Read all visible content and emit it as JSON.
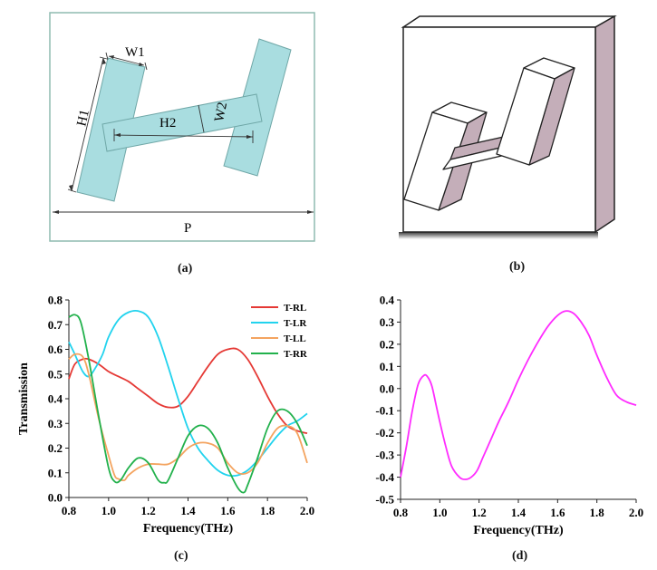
{
  "panels": {
    "a": {
      "caption": "(a)",
      "labels": {
        "w1": "W1",
        "h1": "H1",
        "h2": "H2",
        "w2": "W2",
        "p": "P"
      },
      "colors": {
        "fill": "#a9dde0",
        "stroke": "#6fa7a7",
        "frame": "#8fbbb1"
      }
    },
    "b": {
      "caption": "(b)",
      "colors": {
        "face": "#ffffff",
        "side": "#c4aeb9",
        "edge": "#222222"
      }
    },
    "c": {
      "caption": "(c)"
    },
    "d": {
      "caption": "(d)"
    }
  },
  "chart_data": [
    {
      "type": "line",
      "xlabel": "Frequency(THz)",
      "ylabel": "Transmission",
      "xlim": [
        0.8,
        2.0
      ],
      "ylim": [
        0.0,
        0.8
      ],
      "xticks": [
        "0.8",
        "1.0",
        "1.2",
        "1.4",
        "1.6",
        "1.8",
        "2.0"
      ],
      "yticks": [
        "0.0",
        "0.1",
        "0.2",
        "0.3",
        "0.4",
        "0.5",
        "0.6",
        "0.7",
        "0.8"
      ],
      "legend_position": "top-right",
      "series": [
        {
          "name": "T-RL",
          "color": "#e53935",
          "x": [
            0.8,
            0.83,
            0.87,
            0.9,
            0.95,
            1.0,
            1.05,
            1.1,
            1.15,
            1.2,
            1.25,
            1.3,
            1.35,
            1.4,
            1.45,
            1.5,
            1.55,
            1.6,
            1.65,
            1.7,
            1.75,
            1.8,
            1.85,
            1.9,
            1.95,
            2.0
          ],
          "y": [
            0.48,
            0.54,
            0.56,
            0.56,
            0.54,
            0.51,
            0.49,
            0.47,
            0.44,
            0.41,
            0.38,
            0.365,
            0.37,
            0.41,
            0.47,
            0.53,
            0.58,
            0.6,
            0.6,
            0.56,
            0.49,
            0.41,
            0.34,
            0.29,
            0.27,
            0.26
          ]
        },
        {
          "name": "T-LR",
          "color": "#22d3ee",
          "x": [
            0.8,
            0.83,
            0.87,
            0.9,
            0.93,
            0.97,
            1.0,
            1.05,
            1.1,
            1.15,
            1.2,
            1.25,
            1.3,
            1.35,
            1.4,
            1.45,
            1.5,
            1.55,
            1.6,
            1.65,
            1.7,
            1.75,
            1.8,
            1.85,
            1.9,
            1.95,
            2.0
          ],
          "y": [
            0.63,
            0.58,
            0.51,
            0.49,
            0.52,
            0.58,
            0.65,
            0.72,
            0.75,
            0.755,
            0.73,
            0.65,
            0.53,
            0.4,
            0.28,
            0.2,
            0.15,
            0.11,
            0.09,
            0.09,
            0.11,
            0.15,
            0.2,
            0.25,
            0.29,
            0.31,
            0.34
          ]
        },
        {
          "name": "T-LL",
          "color": "#f4a460",
          "x": [
            0.8,
            0.83,
            0.87,
            0.9,
            0.95,
            1.0,
            1.03,
            1.05,
            1.08,
            1.1,
            1.15,
            1.2,
            1.25,
            1.3,
            1.35,
            1.4,
            1.45,
            1.5,
            1.55,
            1.6,
            1.65,
            1.7,
            1.75,
            1.8,
            1.85,
            1.9,
            1.95,
            2.0
          ],
          "y": [
            0.56,
            0.58,
            0.57,
            0.5,
            0.32,
            0.17,
            0.09,
            0.075,
            0.07,
            0.09,
            0.12,
            0.135,
            0.135,
            0.135,
            0.16,
            0.2,
            0.22,
            0.22,
            0.2,
            0.14,
            0.1,
            0.1,
            0.14,
            0.22,
            0.28,
            0.29,
            0.26,
            0.14
          ]
        },
        {
          "name": "T-RR",
          "color": "#22b14c",
          "x": [
            0.8,
            0.83,
            0.86,
            0.9,
            0.95,
            1.0,
            1.03,
            1.06,
            1.1,
            1.15,
            1.2,
            1.25,
            1.28,
            1.3,
            1.35,
            1.4,
            1.45,
            1.5,
            1.55,
            1.6,
            1.65,
            1.68,
            1.7,
            1.75,
            1.8,
            1.85,
            1.9,
            1.95,
            2.0
          ],
          "y": [
            0.73,
            0.74,
            0.71,
            0.56,
            0.33,
            0.12,
            0.065,
            0.07,
            0.12,
            0.16,
            0.14,
            0.07,
            0.06,
            0.07,
            0.16,
            0.25,
            0.29,
            0.28,
            0.22,
            0.12,
            0.04,
            0.02,
            0.05,
            0.16,
            0.28,
            0.35,
            0.35,
            0.3,
            0.21
          ]
        }
      ]
    },
    {
      "type": "line",
      "xlabel": "Frequency(THz)",
      "ylabel": "",
      "xlim": [
        0.8,
        2.0
      ],
      "ylim": [
        -0.5,
        0.4
      ],
      "xticks": [
        "0.8",
        "1.0",
        "1.2",
        "1.4",
        "1.6",
        "1.8",
        "2.0"
      ],
      "yticks": [
        "-0.5",
        "-0.4",
        "-0.3",
        "-0.2",
        "-0.1",
        "0.0",
        "0.1",
        "0.2",
        "0.3",
        "0.4"
      ],
      "series": [
        {
          "color": "#ff2cff",
          "x": [
            0.8,
            0.83,
            0.86,
            0.89,
            0.92,
            0.94,
            0.96,
            0.98,
            1.0,
            1.03,
            1.06,
            1.1,
            1.13,
            1.16,
            1.19,
            1.22,
            1.26,
            1.3,
            1.35,
            1.4,
            1.45,
            1.5,
            1.55,
            1.6,
            1.64,
            1.68,
            1.72,
            1.76,
            1.8,
            1.85,
            1.9,
            1.95,
            2.0
          ],
          "y": [
            -0.4,
            -0.26,
            -0.1,
            0.02,
            0.06,
            0.05,
            0.01,
            -0.07,
            -0.15,
            -0.26,
            -0.35,
            -0.4,
            -0.41,
            -0.4,
            -0.37,
            -0.31,
            -0.23,
            -0.15,
            -0.06,
            0.04,
            0.13,
            0.21,
            0.28,
            0.33,
            0.35,
            0.34,
            0.3,
            0.24,
            0.15,
            0.05,
            -0.03,
            -0.06,
            -0.075
          ]
        }
      ]
    }
  ]
}
